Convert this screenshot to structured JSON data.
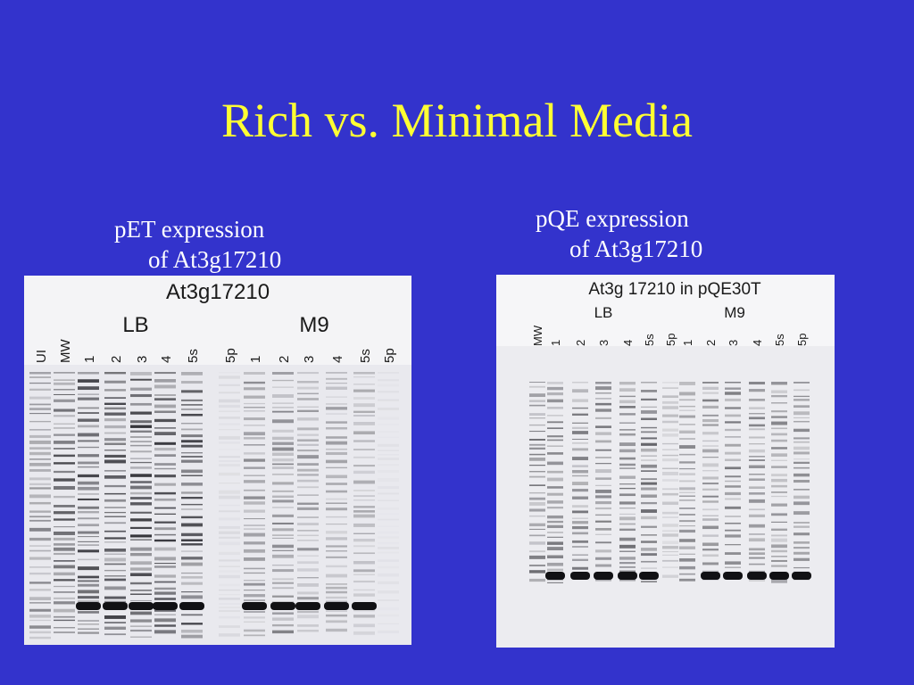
{
  "slide": {
    "title": "Rich vs. Minimal Media"
  },
  "panels": [
    {
      "caption_line1": "pET expression",
      "caption_line2": "of At3g17210",
      "gel": {
        "title": "At3g17210",
        "group_labels": [
          "LB",
          "M9"
        ],
        "lane_labels": [
          "UI",
          "MW",
          "1",
          "2",
          "3",
          "4",
          "5s",
          "5p",
          "1",
          "2",
          "3",
          "4",
          "5s",
          "5p"
        ]
      }
    },
    {
      "caption_line1": "pQE expression",
      "caption_line2": "of At3g17210",
      "gel": {
        "title": "At3g 17210 in pQE30T",
        "group_labels": [
          "LB",
          "M9"
        ],
        "lane_labels": [
          "MW",
          "1",
          "2",
          "3",
          "4",
          "5s",
          "5p",
          "1",
          "2",
          "3",
          "4",
          "5s",
          "5p"
        ]
      }
    }
  ],
  "colors": {
    "background": "#3333cc",
    "title": "#ffff33",
    "caption": "#ffffff",
    "gel": "#f2f2f4",
    "band": "#1a1a1a"
  }
}
